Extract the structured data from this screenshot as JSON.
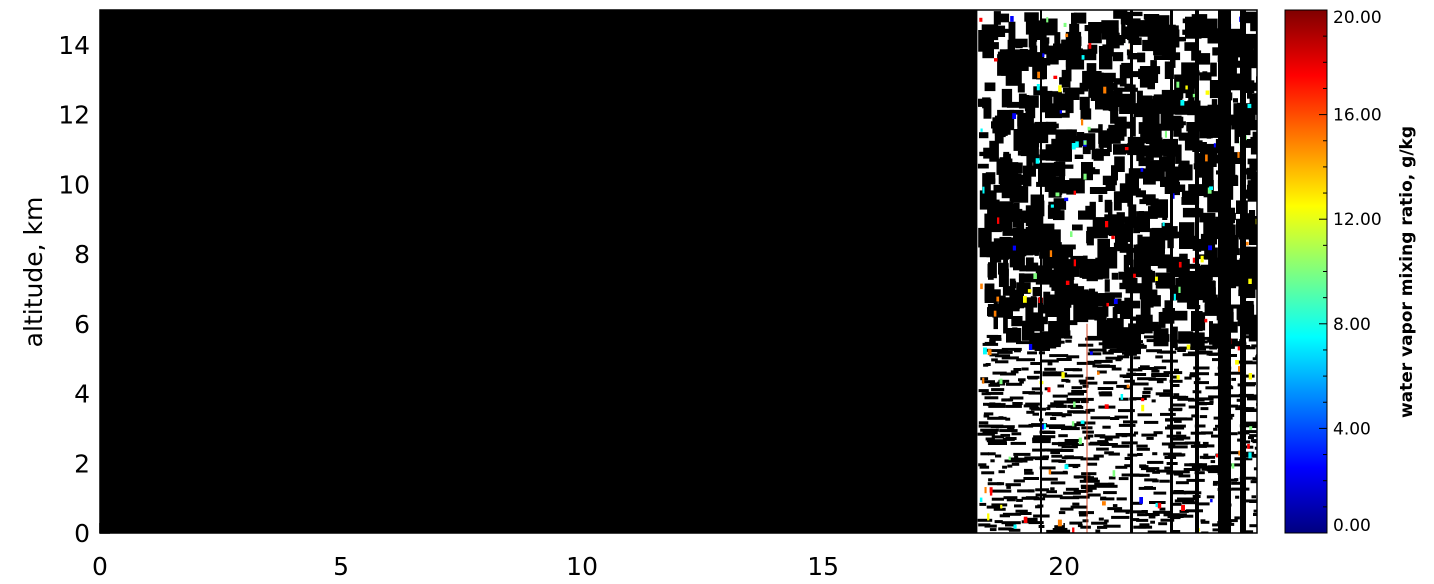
{
  "chart_data": {
    "type": "heatmap",
    "title": "",
    "xlabel": "",
    "ylabel": "altitude, km",
    "xlim": [
      0,
      24
    ],
    "ylim": [
      0,
      15
    ],
    "x_ticks": [
      "0",
      "5",
      "10",
      "15",
      "20"
    ],
    "y_ticks": [
      "0",
      "2",
      "4",
      "6",
      "8",
      "10",
      "12",
      "14"
    ],
    "x_tick_values": [
      0,
      5,
      10,
      15,
      20
    ],
    "y_tick_values": [
      0,
      2,
      4,
      6,
      8,
      10,
      12,
      14
    ],
    "no_data_region": {
      "x": [
        0,
        18.2
      ],
      "value": "no data (black)"
    },
    "data_region": {
      "x": [
        18.2,
        24
      ],
      "description_values": "sparse retrievals, mostly white/black with isolated colored points"
    },
    "colorbar": {
      "label": "water vapor mixing ratio, g/kg",
      "range": [
        0,
        20
      ],
      "ticks": [
        "0.00",
        "4.00",
        "8.00",
        "12.00",
        "16.00",
        "20.00"
      ],
      "tick_values": [
        0,
        4,
        8,
        12,
        16,
        20
      ],
      "colormap": "jet"
    }
  }
}
